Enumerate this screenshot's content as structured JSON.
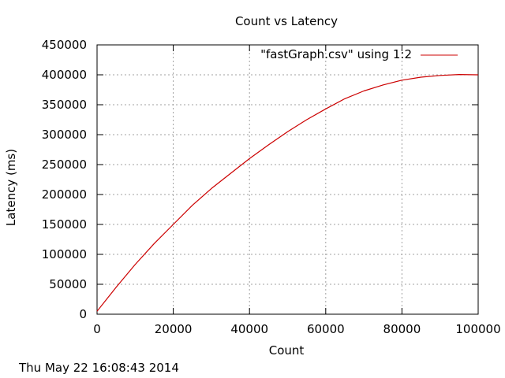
{
  "chart_data": {
    "type": "line",
    "title": "Count vs Latency",
    "xlabel": "Count",
    "ylabel": "Latency (ms)",
    "xlim": [
      0,
      100000
    ],
    "ylim": [
      0,
      450000
    ],
    "xticks": [
      0,
      20000,
      40000,
      60000,
      80000,
      100000
    ],
    "yticks": [
      0,
      50000,
      100000,
      150000,
      200000,
      250000,
      300000,
      350000,
      400000,
      450000
    ],
    "grid": true,
    "legend_position": "top-right",
    "series": [
      {
        "name": "\"fastGraph.csv\" using 1:2",
        "color": "#cc0000",
        "x": [
          0,
          5000,
          10000,
          15000,
          20000,
          25000,
          30000,
          35000,
          40000,
          45000,
          50000,
          55000,
          60000,
          65000,
          70000,
          75000,
          80000,
          85000,
          90000,
          95000,
          100000
        ],
        "y": [
          5000,
          45000,
          83000,
          118000,
          150000,
          182000,
          210000,
          235000,
          260000,
          283000,
          305000,
          325000,
          343000,
          360000,
          373000,
          383000,
          391000,
          396000,
          399000,
          400500,
          400000
        ]
      }
    ]
  },
  "footer": {
    "timestamp": "Thu May 22 16:08:43 2014"
  }
}
